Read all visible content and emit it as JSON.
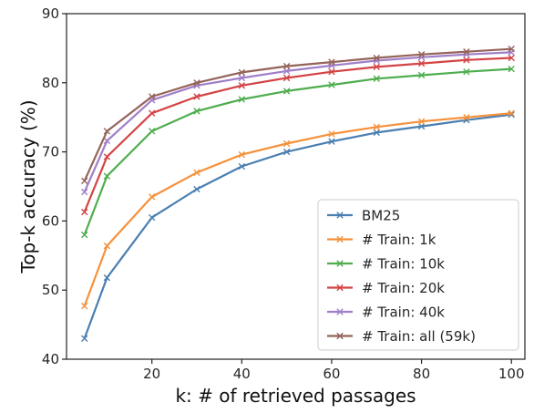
{
  "chart_data": {
    "type": "line",
    "xlabel": "k: # of retrieved passages",
    "ylabel": "Top-k accuracy (%)",
    "xlim": [
      1,
      103
    ],
    "ylim": [
      40,
      90
    ],
    "xticks": [
      20,
      40,
      60,
      80,
      100
    ],
    "yticks": [
      40,
      50,
      60,
      70,
      80,
      90
    ],
    "grid": false,
    "legend_position": "bottom-right",
    "marker": "x",
    "x": [
      5,
      10,
      20,
      30,
      40,
      50,
      60,
      70,
      80,
      90,
      100
    ],
    "series": [
      {
        "name": "BM25",
        "color": "#4a7fb0",
        "values": [
          43.0,
          51.8,
          60.5,
          64.6,
          67.9,
          70.0,
          71.5,
          72.8,
          73.7,
          74.6,
          75.4
        ]
      },
      {
        "name": "# Train: 1k",
        "color": "#f5913b",
        "values": [
          47.7,
          56.4,
          63.5,
          67.0,
          69.6,
          71.2,
          72.6,
          73.6,
          74.4,
          75.0,
          75.6
        ]
      },
      {
        "name": "# Train: 10k",
        "color": "#4fad4f",
        "values": [
          58.0,
          66.5,
          73.0,
          75.9,
          77.6,
          78.8,
          79.7,
          80.6,
          81.1,
          81.6,
          82.0
        ]
      },
      {
        "name": "# Train: 20k",
        "color": "#d44445",
        "values": [
          61.3,
          69.3,
          75.6,
          78.0,
          79.6,
          80.7,
          81.6,
          82.3,
          82.8,
          83.3,
          83.6
        ]
      },
      {
        "name": "# Train: 40k",
        "color": "#a07fc9",
        "values": [
          64.2,
          71.6,
          77.5,
          79.6,
          80.7,
          81.7,
          82.5,
          83.2,
          83.7,
          84.1,
          84.4
        ]
      },
      {
        "name": "# Train: all (59k)",
        "color": "#94635a",
        "values": [
          65.8,
          73.0,
          78.0,
          80.0,
          81.5,
          82.4,
          83.0,
          83.6,
          84.1,
          84.5,
          84.9
        ]
      }
    ]
  }
}
